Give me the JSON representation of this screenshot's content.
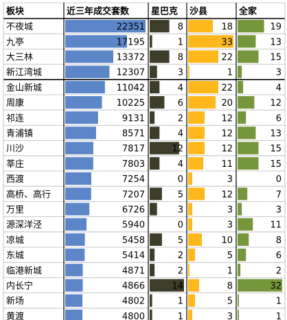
{
  "chart_data": {
    "type": "table",
    "columns": [
      "板块",
      "近三年成交套数",
      "星巴克",
      "沙县",
      "全家"
    ],
    "rows": [
      {
        "district": "不夜城",
        "sales": 22351,
        "starbucks": 8,
        "shaxian": 18,
        "familymart": 19
      },
      {
        "district": "九亭",
        "sales": 17195,
        "starbucks": 1,
        "shaxian": 33,
        "familymart": 13
      },
      {
        "district": "大三林",
        "sales": 13372,
        "starbucks": 8,
        "shaxian": 22,
        "familymart": 15
      },
      {
        "district": "新江湾城",
        "sales": 12307,
        "starbucks": 3,
        "shaxian": 1,
        "familymart": 3
      },
      {
        "district": "金山新城",
        "sales": 11042,
        "starbucks": 4,
        "shaxian": 22,
        "familymart": 4
      },
      {
        "district": "周康",
        "sales": 10225,
        "starbucks": 6,
        "shaxian": 20,
        "familymart": 12
      },
      {
        "district": "祁连",
        "sales": 9131,
        "starbucks": 2,
        "shaxian": 12,
        "familymart": 6
      },
      {
        "district": "青浦镇",
        "sales": 8571,
        "starbucks": 4,
        "shaxian": 12,
        "familymart": 13
      },
      {
        "district": "川沙",
        "sales": 7817,
        "starbucks": 12,
        "shaxian": 12,
        "familymart": 15
      },
      {
        "district": "莘庄",
        "sales": 7803,
        "starbucks": 4,
        "shaxian": 11,
        "familymart": 15
      },
      {
        "district": "西渡",
        "sales": 7254,
        "starbucks": 0,
        "shaxian": 3,
        "familymart": 0
      },
      {
        "district": "高桥、高行",
        "sales": 7207,
        "starbucks": 5,
        "shaxian": 12,
        "familymart": 7
      },
      {
        "district": "万里",
        "sales": 6726,
        "starbucks": 3,
        "shaxian": 3,
        "familymart": 3
      },
      {
        "district": "源深洋泾",
        "sales": 5940,
        "starbucks": 0,
        "shaxian": 3,
        "familymart": 11
      },
      {
        "district": "凉城",
        "sales": 5458,
        "starbucks": 5,
        "shaxian": 10,
        "familymart": 8
      },
      {
        "district": "东城",
        "sales": 5414,
        "starbucks": 2,
        "shaxian": 5,
        "familymart": 6
      },
      {
        "district": "临港新城",
        "sales": 4871,
        "starbucks": 2,
        "shaxian": 1,
        "familymart": 2
      },
      {
        "district": "内长宁",
        "sales": 4866,
        "starbucks": 14,
        "shaxian": 8,
        "familymart": 32
      },
      {
        "district": "新场",
        "sales": 4802,
        "starbucks": 1,
        "shaxian": 5,
        "familymart": 1
      },
      {
        "district": "黄渡",
        "sales": 4800,
        "starbucks": 1,
        "shaxian": 3,
        "familymart": 1
      }
    ],
    "bar_colors": {
      "sales": "#5b86c8",
      "starbucks": "#3d3d2a",
      "shaxian": "#ffb81c",
      "familymart": "#76963c"
    }
  }
}
